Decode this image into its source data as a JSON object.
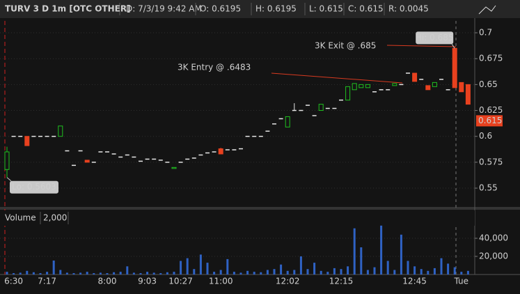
{
  "header": {
    "symbol": "TURV 3 D 1m [OTC OTHER]",
    "fields": [
      "D: 7/3/19 9:42 AM",
      "O: 0.6195",
      "H: 0.6195",
      "L: 0.615",
      "C: 0.615",
      "R: 0.0045"
    ]
  },
  "chart_data": [
    {
      "type": "candlestick",
      "categories": [
        null,
        "6:30",
        null,
        null,
        null,
        null,
        "7:17",
        null,
        null,
        null,
        null,
        null,
        null,
        null,
        null,
        "8:00",
        null,
        null,
        null,
        null,
        null,
        "9:03",
        null,
        null,
        null,
        null,
        "10:27",
        null,
        null,
        null,
        null,
        null,
        "11:00",
        null,
        null,
        null,
        null,
        null,
        null,
        null,
        null,
        null,
        "12:02",
        null,
        null,
        null,
        null,
        null,
        null,
        null,
        "12:15",
        null,
        null,
        null,
        null,
        null,
        null,
        null,
        null,
        null,
        null,
        "12:45",
        null,
        null,
        null,
        null,
        null,
        null,
        "Tue",
        null
      ],
      "open": [
        0.568,
        0.6,
        0.6,
        0.6,
        0.6,
        0.6,
        0.6,
        0.6,
        0.6,
        0.586,
        0.572,
        0.586,
        0.577,
        0.575,
        0.585,
        0.585,
        0.583,
        0.58,
        0.582,
        0.58,
        0.576,
        0.578,
        0.578,
        0.577,
        0.575,
        0.569,
        0.575,
        0.578,
        0.579,
        0.582,
        0.584,
        0.585,
        0.588,
        0.587,
        0.587,
        0.588,
        0.6,
        0.6,
        0.6,
        0.605,
        0.612,
        0.617,
        0.609,
        0.625,
        0.625,
        0.63,
        0.62,
        0.625,
        0.627,
        0.627,
        0.635,
        0.635,
        0.645,
        0.647,
        0.647,
        0.643,
        0.645,
        0.645,
        0.649,
        0.65,
        0.661,
        0.661,
        0.655,
        0.649,
        0.648,
        0.655,
        0.645,
        0.685,
        0.652,
        0.65
      ],
      "high": [
        0.59,
        0.6,
        0.6,
        0.6,
        0.6,
        0.6,
        0.6,
        0.6,
        0.61,
        0.586,
        0.572,
        0.586,
        0.577,
        0.575,
        0.585,
        0.585,
        0.583,
        0.58,
        0.582,
        0.58,
        0.576,
        0.578,
        0.578,
        0.577,
        0.575,
        0.57,
        0.575,
        0.578,
        0.579,
        0.582,
        0.584,
        0.585,
        0.589,
        0.587,
        0.587,
        0.588,
        0.6,
        0.6,
        0.6,
        0.605,
        0.612,
        0.617,
        0.619,
        0.632,
        0.625,
        0.63,
        0.62,
        0.631,
        0.627,
        0.627,
        0.635,
        0.648,
        0.651,
        0.65,
        0.65,
        0.643,
        0.645,
        0.645,
        0.651,
        0.65,
        0.661,
        0.661,
        0.655,
        0.649,
        0.652,
        0.655,
        0.645,
        0.685,
        0.652,
        0.65
      ],
      "low": [
        0.5603,
        0.6,
        0.6,
        0.591,
        0.6,
        0.6,
        0.6,
        0.6,
        0.6,
        0.586,
        0.572,
        0.586,
        0.575,
        0.575,
        0.585,
        0.585,
        0.583,
        0.58,
        0.582,
        0.58,
        0.576,
        0.578,
        0.578,
        0.577,
        0.575,
        0.569,
        0.575,
        0.578,
        0.579,
        0.582,
        0.584,
        0.585,
        0.583,
        0.587,
        0.587,
        0.588,
        0.6,
        0.6,
        0.6,
        0.605,
        0.612,
        0.617,
        0.609,
        0.625,
        0.625,
        0.63,
        0.62,
        0.625,
        0.627,
        0.627,
        0.635,
        0.635,
        0.645,
        0.647,
        0.647,
        0.643,
        0.645,
        0.645,
        0.649,
        0.65,
        0.661,
        0.653,
        0.655,
        0.645,
        0.648,
        0.655,
        0.645,
        0.647,
        0.643,
        0.631
      ],
      "close": [
        0.585,
        0.6,
        0.6,
        0.591,
        0.6,
        0.6,
        0.6,
        0.6,
        0.61,
        0.586,
        0.572,
        0.586,
        0.575,
        0.575,
        0.585,
        0.585,
        0.583,
        0.58,
        0.582,
        0.58,
        0.576,
        0.578,
        0.578,
        0.577,
        0.575,
        0.57,
        0.575,
        0.578,
        0.579,
        0.582,
        0.584,
        0.585,
        0.583,
        0.587,
        0.587,
        0.588,
        0.6,
        0.6,
        0.6,
        0.605,
        0.612,
        0.617,
        0.619,
        0.625,
        0.625,
        0.63,
        0.62,
        0.631,
        0.627,
        0.627,
        0.635,
        0.648,
        0.651,
        0.65,
        0.65,
        0.643,
        0.645,
        0.645,
        0.651,
        0.65,
        0.661,
        0.653,
        0.655,
        0.645,
        0.652,
        0.655,
        0.645,
        0.647,
        0.643,
        0.631
      ],
      "up_color": "#1fc01f",
      "down_color": "#e8411f",
      "flat_color": "#e6e6e6",
      "ylim": [
        0.5312,
        0.7128
      ],
      "yticks": [
        0.55,
        0.575,
        0.6,
        0.625,
        0.65,
        0.675,
        0.7
      ],
      "grid": true,
      "last_price": 0.615,
      "annotations": [
        "3K Entry @ .6483",
        "3K Exit @ .685"
      ],
      "high_label": "Hi: 0.685",
      "low_label": "Lo: 0.5603"
    },
    {
      "type": "bar",
      "title": "Volume",
      "subtitle": "2,000",
      "color": "#2f62c4",
      "values": [
        3000,
        1500,
        2000,
        4000,
        2500,
        1500,
        3000,
        15400,
        5000,
        2000,
        1500,
        2000,
        3000,
        1500,
        2000,
        1500,
        2500,
        3000,
        9000,
        2000,
        1500,
        3000,
        2000,
        1500,
        2500,
        3000,
        15000,
        18000,
        6000,
        22000,
        13000,
        3000,
        5000,
        17000,
        3000,
        2000,
        4000,
        3000,
        2500,
        5000,
        6000,
        11000,
        4000,
        5000,
        20000,
        6000,
        13000,
        4000,
        3000,
        7000,
        6000,
        9000,
        51000,
        30000,
        5000,
        8000,
        54000,
        15000,
        5000,
        44000,
        15000,
        9000,
        6000,
        4000,
        7000,
        18000,
        12000,
        8000,
        3000,
        4000
      ],
      "ylim": [
        0,
        55400
      ],
      "yticks": [
        {
          "value": 20000,
          "label": "20,000"
        },
        {
          "value": 40000,
          "label": "40,000"
        }
      ],
      "grid": true
    }
  ]
}
